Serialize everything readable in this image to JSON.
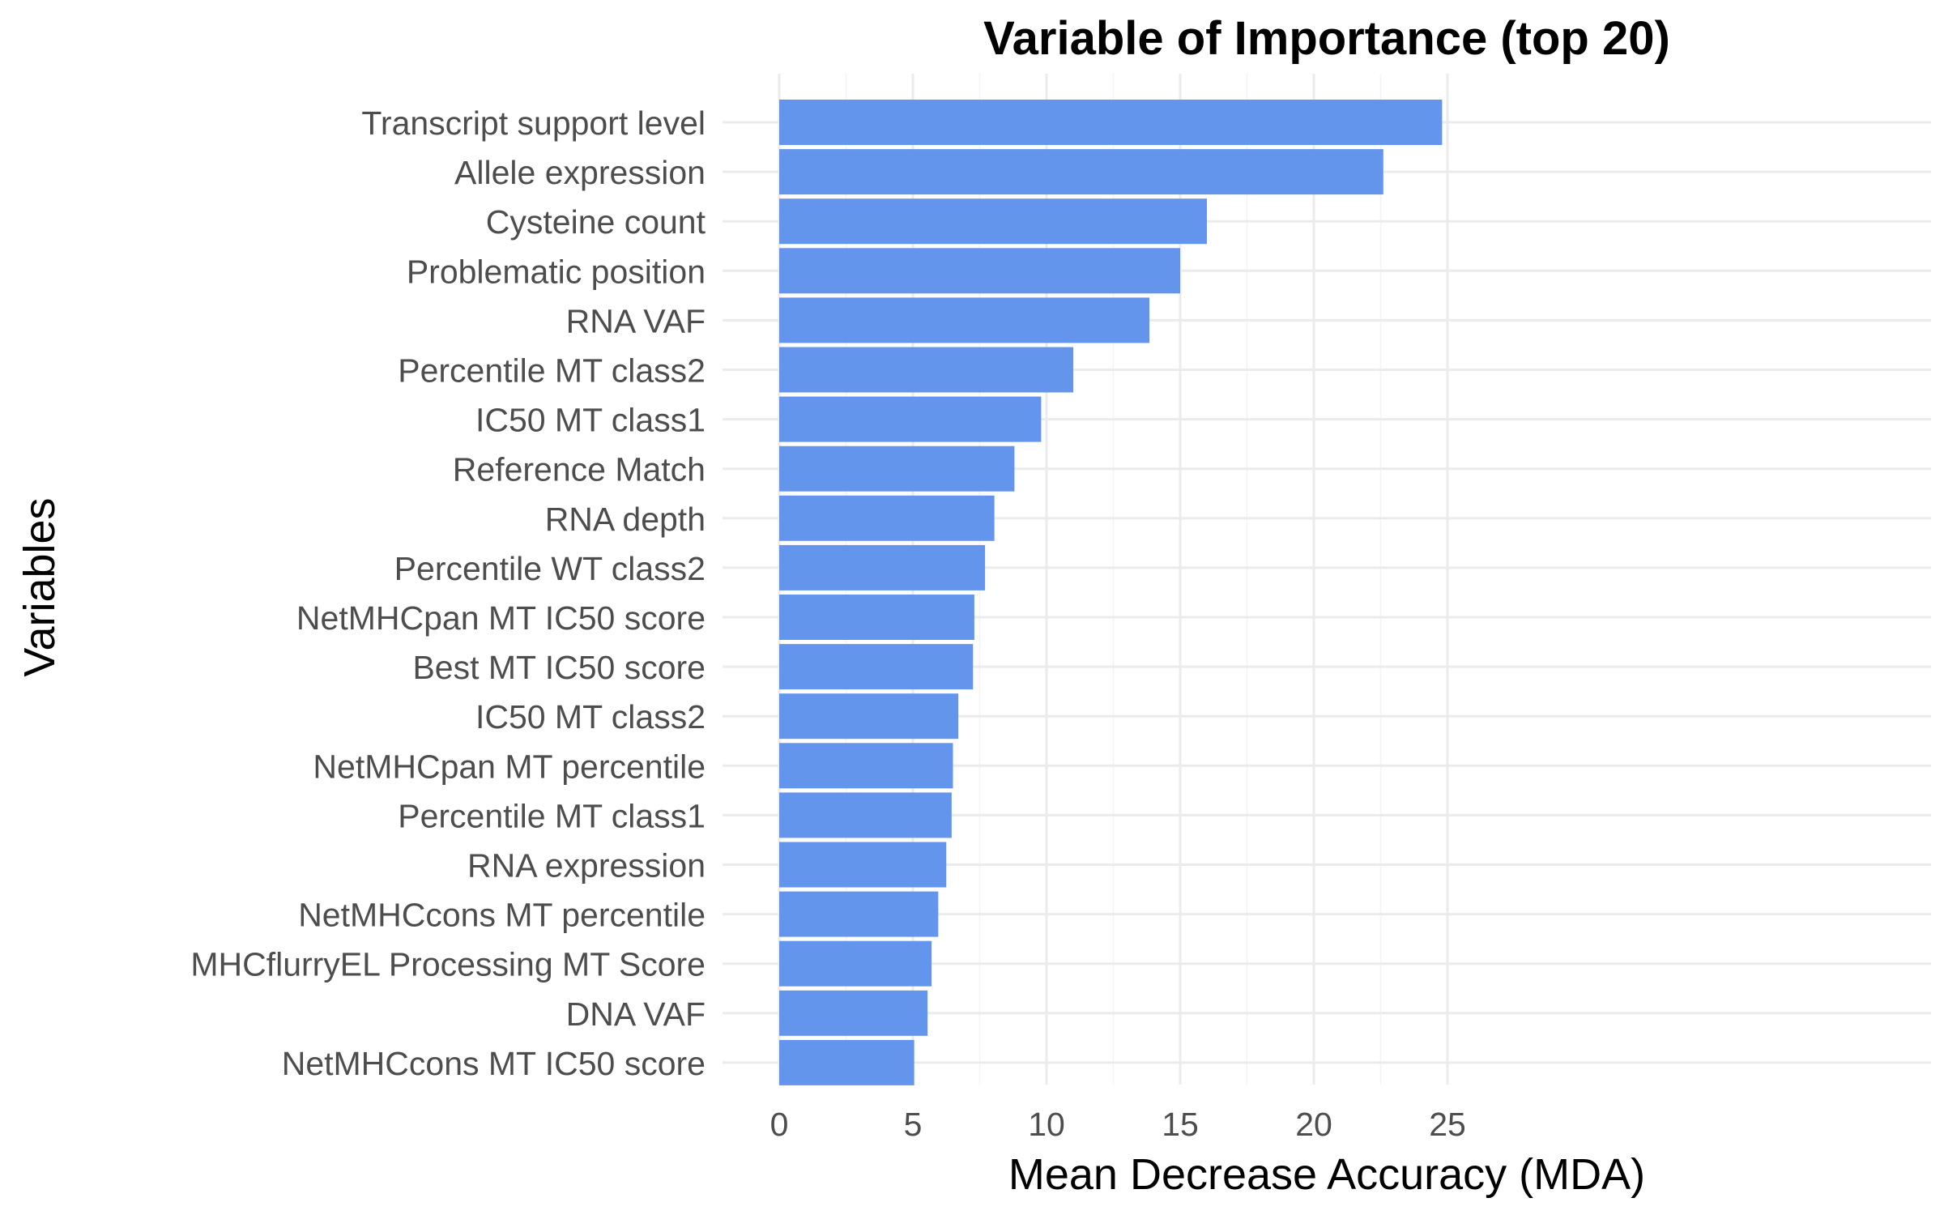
{
  "chart_data": {
    "type": "bar",
    "orientation": "horizontal",
    "title": "Variable of Importance (top 20)",
    "xlabel": "Mean Decrease Accuracy (MDA)",
    "ylabel": "Variables",
    "xlim": [
      0,
      26
    ],
    "xticks": [
      0,
      5,
      10,
      15,
      20,
      25
    ],
    "grid": true,
    "bar_color": "#6495ED",
    "categories": [
      "Transcript support level",
      "Allele expression",
      "Cysteine count",
      "Problematic position",
      "RNA VAF",
      "Percentile MT class2",
      "IC50 MT class1",
      "Reference Match",
      "RNA depth",
      "Percentile WT class2",
      "NetMHCpan MT IC50 score",
      "Best MT IC50 score",
      "IC50 MT class2",
      "NetMHCpan MT percentile",
      "Percentile MT class1",
      "RNA expression",
      "NetMHCcons MT percentile",
      "MHCflurryEL Processing MT Score",
      "DNA VAF",
      "NetMHCcons MT IC50 score"
    ],
    "values": [
      24.8,
      22.6,
      16.0,
      15.0,
      13.85,
      11.0,
      9.8,
      8.8,
      8.05,
      7.7,
      7.3,
      7.25,
      6.7,
      6.5,
      6.45,
      6.25,
      5.95,
      5.7,
      5.55,
      5.05
    ]
  }
}
